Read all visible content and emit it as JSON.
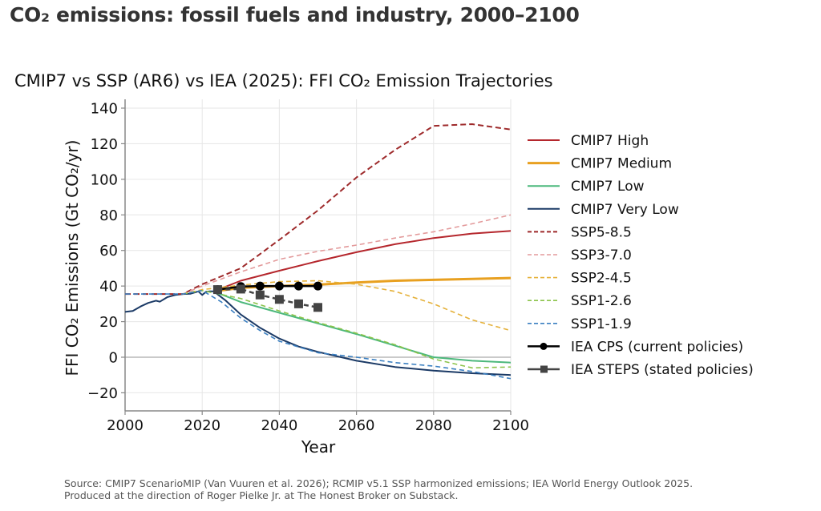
{
  "page": {
    "title": "CO₂ emissions: fossil fuels and industry, 2000–2100",
    "footer_line1": "Source: CMIP7 ScenarioMIP (Van Vuuren et al. 2026); RCMIP v5.1 SSP harmonized emissions; IEA World Energy Outlook 2025.",
    "footer_line2": "Produced at the direction of Roger Pielke Jr. at The Honest Broker on Substack."
  },
  "chart_data": {
    "type": "line",
    "title": "CMIP7 vs SSP (AR6) vs IEA (2025): FFI CO₂ Emission Trajectories",
    "xlabel": "Year",
    "ylabel": "FFI CO₂ Emissions (Gt CO₂/yr)",
    "xlim": [
      2000,
      2100
    ],
    "ylim": [
      -30,
      145
    ],
    "xticks": [
      2000,
      2020,
      2040,
      2060,
      2080,
      2100
    ],
    "yticks": [
      -20,
      0,
      20,
      40,
      60,
      80,
      100,
      120,
      140
    ],
    "xtick_labels": [
      "2000",
      "2020",
      "2040",
      "2060",
      "2080",
      "2100"
    ],
    "ytick_labels": [
      "−20",
      "0",
      "20",
      "40",
      "60",
      "80",
      "100",
      "120",
      "140"
    ],
    "grid": true,
    "zero_line": true,
    "legend_position": "right",
    "series": [
      {
        "name": "CMIP7 High",
        "color": "#b5272d",
        "style": "solid",
        "width": 2,
        "x": [
          2023,
          2030,
          2040,
          2050,
          2060,
          2070,
          2080,
          2090,
          2100
        ],
        "y": [
          37,
          43,
          48.6,
          54,
          59,
          63.5,
          67,
          69.5,
          71
        ]
      },
      {
        "name": "CMIP7 Medium",
        "color": "#e8a020",
        "style": "solid",
        "width": 3,
        "x": [
          2023,
          2030,
          2040,
          2050,
          2060,
          2070,
          2080,
          2090,
          2100
        ],
        "y": [
          37,
          39,
          40,
          40.8,
          42,
          43,
          43.5,
          44,
          44.5
        ]
      },
      {
        "name": "CMIP7 Low",
        "color": "#4cb87c",
        "style": "solid",
        "width": 2,
        "x": [
          2023,
          2030,
          2040,
          2050,
          2060,
          2070,
          2080,
          2090,
          2100
        ],
        "y": [
          37,
          31,
          25,
          19,
          13,
          6.5,
          0,
          -2,
          -3
        ]
      },
      {
        "name": "CMIP7 Very Low",
        "color": "#1b3a66",
        "style": "solid",
        "width": 2,
        "x": [
          2000,
          2002,
          2004,
          2006,
          2008,
          2009,
          2011,
          2013,
          2015,
          2017,
          2019,
          2020,
          2021,
          2022,
          2023,
          2026,
          2030,
          2035,
          2040,
          2045,
          2050,
          2060,
          2070,
          2080,
          2090,
          2100
        ],
        "y": [
          25.5,
          26,
          28.5,
          30.5,
          31.8,
          31.2,
          33.8,
          35,
          35.5,
          35.7,
          37,
          35,
          36.8,
          37,
          37,
          32,
          24,
          16.5,
          10.5,
          6,
          3,
          -2,
          -5.5,
          -7.5,
          -9,
          -10
        ]
      },
      {
        "name": "SSP5-8.5",
        "color": "#9e2a2b",
        "style": "dashed",
        "width": 2,
        "x": [
          2000,
          2015,
          2020,
          2030,
          2040,
          2050,
          2060,
          2070,
          2080,
          2090,
          2100
        ],
        "y": [
          35.5,
          35.5,
          41,
          50,
          66,
          82.5,
          101,
          116.5,
          130,
          131,
          128
        ]
      },
      {
        "name": "SSP3-7.0",
        "color": "#e39a9b",
        "style": "dashed",
        "width": 1.6,
        "x": [
          2015,
          2020,
          2030,
          2040,
          2050,
          2060,
          2070,
          2080,
          2090,
          2100
        ],
        "y": [
          35.5,
          40,
          48,
          55,
          59.5,
          63,
          67,
          70.5,
          75,
          80
        ]
      },
      {
        "name": "SSP2-4.5",
        "color": "#e5b13a",
        "style": "dashed",
        "width": 1.6,
        "x": [
          2015,
          2020,
          2030,
          2040,
          2050,
          2060,
          2070,
          2080,
          2090,
          2100
        ],
        "y": [
          35.5,
          38,
          40.5,
          42.5,
          43,
          41,
          37,
          30,
          21,
          15
        ]
      },
      {
        "name": "SSP1-2.6",
        "color": "#8bc34a",
        "style": "dashed",
        "width": 1.6,
        "x": [
          2015,
          2020,
          2030,
          2040,
          2050,
          2060,
          2070,
          2080,
          2090,
          2100
        ],
        "y": [
          35.5,
          37.5,
          33,
          26,
          19.5,
          13.5,
          7,
          -1,
          -6,
          -5.5
        ]
      },
      {
        "name": "SSP1-1.9",
        "color": "#3a7fc1",
        "style": "dashed",
        "width": 1.6,
        "x": [
          2000,
          2015,
          2020,
          2025,
          2030,
          2035,
          2040,
          2050,
          2060,
          2070,
          2080,
          2090,
          2100
        ],
        "y": [
          35.5,
          35.5,
          37.5,
          31,
          22,
          15,
          9,
          2.5,
          0,
          -3,
          -5,
          -8,
          -12
        ]
      },
      {
        "name": "IEA CPS (current policies)",
        "color": "#000000",
        "style": "solid",
        "width": 2.5,
        "marker": "circle",
        "x": [
          2024,
          2030,
          2035,
          2040,
          2045,
          2050
        ],
        "y": [
          38,
          39.7,
          40,
          40,
          40,
          40
        ]
      },
      {
        "name": "IEA STEPS (stated policies)",
        "color": "#444444",
        "style": "dashed",
        "width": 2.5,
        "marker": "square",
        "x": [
          2024,
          2030,
          2035,
          2040,
          2045,
          2050
        ],
        "y": [
          38,
          38.3,
          35,
          32.5,
          30,
          28
        ]
      }
    ]
  }
}
